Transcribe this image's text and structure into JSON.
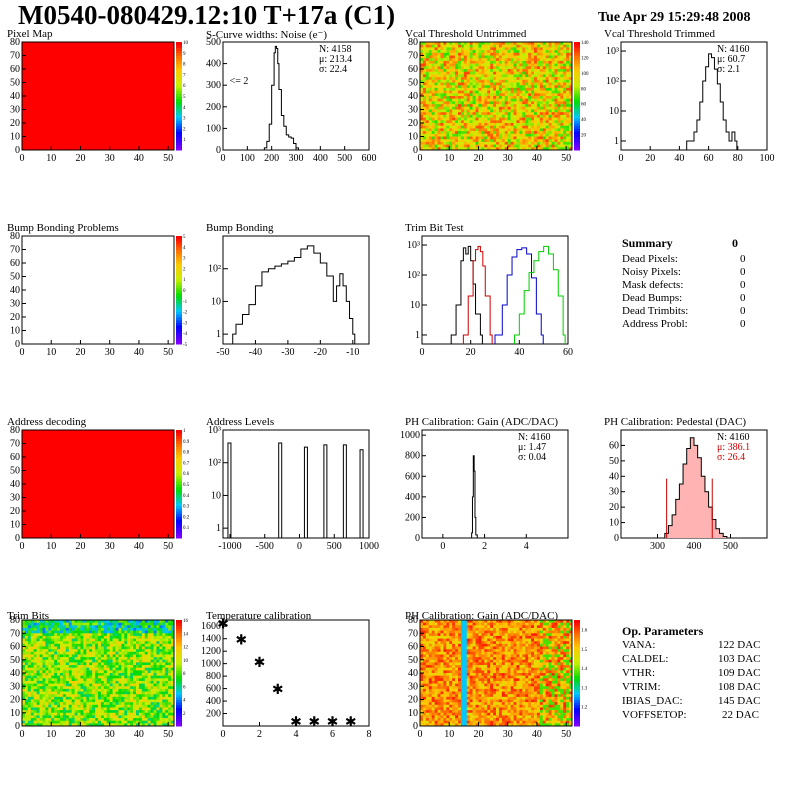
{
  "header": {
    "title": "M0540-080429.12:10 T+17a (C1)",
    "date": "Tue Apr 29 15:29:48 2008"
  },
  "colors": {
    "red": "#ff0000",
    "dark_red": "#cc0000",
    "blue": "#0000cc",
    "green": "#00cc00",
    "black": "#000000"
  },
  "chart_data": [
    {
      "id": "pixel-map",
      "type": "heatmap",
      "title": "Pixel Map",
      "xlim": [
        0,
        52
      ],
      "ylim": [
        0,
        80
      ],
      "xticks": [
        "0",
        "10",
        "20",
        "30",
        "40",
        "50"
      ],
      "yticks": [
        "0",
        "10",
        "20",
        "30",
        "40",
        "50",
        "60",
        "70",
        "80"
      ],
      "fill": "uniform red",
      "zticks": [
        "1",
        "2",
        "3",
        "4",
        "5",
        "6",
        "7",
        "8",
        "9",
        "10"
      ],
      "zlim": [
        0,
        10
      ]
    },
    {
      "id": "s-curve-widths",
      "type": "line",
      "title": "S-Curve widths: Noise (e⁻)",
      "xlim": [
        0,
        600
      ],
      "ylim": [
        0,
        500
      ],
      "xticks": [
        "0",
        "100",
        "200",
        "300",
        "400",
        "500",
        "600"
      ],
      "yticks": [
        "0",
        "100",
        "200",
        "300",
        "400",
        "500"
      ],
      "x": [
        160,
        170,
        180,
        190,
        200,
        210,
        215,
        220,
        225,
        230,
        240,
        250,
        260,
        270,
        280,
        290,
        300,
        310
      ],
      "y": [
        0,
        10,
        40,
        120,
        300,
        450,
        480,
        470,
        400,
        280,
        160,
        110,
        70,
        60,
        55,
        30,
        10,
        0
      ],
      "stats": {
        "n": "N: 4158",
        "mean": "μ: 213.4",
        "sigma": "σ: 22.4"
      },
      "annotation": "<= 2"
    },
    {
      "id": "vcal-untrimmed",
      "type": "heatmap",
      "title": "Vcal Threshold Untrimmed",
      "xlim": [
        0,
        52
      ],
      "ylim": [
        0,
        80
      ],
      "xticks": [
        "0",
        "10",
        "20",
        "30",
        "40",
        "50"
      ],
      "yticks": [
        "0",
        "10",
        "20",
        "30",
        "40",
        "50",
        "60",
        "70",
        "80"
      ],
      "fill": "orange yellow noise",
      "zticks": [
        "20",
        "40",
        "60",
        "80",
        "100",
        "120",
        "140"
      ],
      "zlim": [
        0,
        140
      ]
    },
    {
      "id": "vcal-trimmed",
      "type": "line",
      "title": "Vcal Threshold Trimmed",
      "log_y": true,
      "xlim": [
        0,
        100
      ],
      "ylim": [
        0.5,
        2000
      ],
      "xticks": [
        "0",
        "20",
        "40",
        "60",
        "80",
        "100"
      ],
      "yticks": [
        "1",
        "10",
        "10²",
        "10³"
      ],
      "x": [
        45,
        50,
        52,
        54,
        56,
        58,
        60,
        62,
        64,
        66,
        68,
        70,
        72,
        74,
        76,
        78
      ],
      "y": [
        1,
        2,
        5,
        20,
        100,
        300,
        800,
        600,
        250,
        80,
        20,
        5,
        2,
        1,
        2,
        1
      ],
      "stats": {
        "n": "N: 4160",
        "mean": "μ: 60.7",
        "sigma": "σ:  2.1"
      }
    },
    {
      "id": "bump-bonding-problems",
      "type": "heatmap",
      "title": "Bump Bonding Problems",
      "xlim": [
        0,
        52
      ],
      "ylim": [
        0,
        80
      ],
      "xticks": [
        "0",
        "10",
        "20",
        "30",
        "40",
        "50"
      ],
      "yticks": [
        "0",
        "10",
        "20",
        "30",
        "40",
        "50",
        "60",
        "70",
        "80"
      ],
      "fill": "empty",
      "zticks": [
        "-5",
        "-4",
        "-3",
        "-2",
        "-1",
        "0",
        "1",
        "2",
        "3",
        "4",
        "5"
      ],
      "zlim": [
        -5,
        5
      ]
    },
    {
      "id": "bump-bonding",
      "type": "line",
      "title": "Bump Bonding",
      "log_y": true,
      "xlim": [
        -50,
        -5
      ],
      "ylim": [
        0.5,
        1000
      ],
      "xticks": [
        "-50",
        "-40",
        "-30",
        "-20",
        "-10"
      ],
      "yticks": [
        "1",
        "10",
        "10²"
      ],
      "x": [
        -47,
        -46,
        -45,
        -44,
        -42,
        -40,
        -38,
        -36,
        -34,
        -32,
        -30,
        -28,
        -26,
        -24,
        -22,
        -20,
        -18,
        -16,
        -15,
        -14,
        -13,
        -12,
        -11,
        -10
      ],
      "y": [
        1,
        2,
        2,
        4,
        8,
        30,
        80,
        100,
        120,
        140,
        170,
        220,
        400,
        500,
        300,
        150,
        60,
        10,
        30,
        70,
        30,
        10,
        3,
        1
      ]
    },
    {
      "id": "trim-bit-test",
      "type": "line",
      "title": "Trim Bit Test",
      "log_y": true,
      "xlim": [
        0,
        60
      ],
      "ylim": [
        0.5,
        2000
      ],
      "xticks": [
        "0",
        "20",
        "40",
        "60"
      ],
      "yticks": [
        "1",
        "10",
        "10²",
        "10³"
      ],
      "series": [
        {
          "color": "#000000",
          "x": [
            12,
            14,
            16,
            17,
            18,
            19,
            20,
            21,
            22,
            24
          ],
          "y": [
            1,
            10,
            300,
            800,
            500,
            900,
            300,
            50,
            5,
            1
          ]
        },
        {
          "color": "#cc0000",
          "x": [
            17,
            19,
            21,
            22,
            23,
            24,
            25,
            26,
            28
          ],
          "y": [
            1,
            20,
            300,
            700,
            900,
            600,
            200,
            20,
            1
          ]
        },
        {
          "color": "#0000cc",
          "x": [
            30,
            33,
            35,
            37,
            39,
            41,
            43,
            45,
            47,
            49
          ],
          "y": [
            1,
            10,
            100,
            400,
            700,
            800,
            500,
            80,
            5,
            1
          ]
        },
        {
          "color": "#00cc00",
          "x": [
            38,
            40,
            42,
            44,
            46,
            48,
            50,
            52,
            54,
            56,
            58
          ],
          "y": [
            1,
            5,
            30,
            120,
            300,
            600,
            900,
            500,
            150,
            20,
            1
          ]
        }
      ]
    },
    {
      "id": "address-decoding",
      "type": "heatmap",
      "title": "Address decoding",
      "xlim": [
        0,
        52
      ],
      "ylim": [
        0,
        80
      ],
      "xticks": [
        "0",
        "10",
        "20",
        "30",
        "40",
        "50"
      ],
      "yticks": [
        "0",
        "10",
        "20",
        "30",
        "40",
        "50",
        "60",
        "70",
        "80"
      ],
      "fill": "uniform red",
      "zticks": [
        "0.1",
        "0.2",
        "0.3",
        "0.4",
        "0.5",
        "0.6",
        "0.7",
        "0.8",
        "0.9",
        "1"
      ],
      "zlim": [
        0,
        1
      ]
    },
    {
      "id": "address-levels",
      "type": "line",
      "title": "Address Levels",
      "log_y": true,
      "xlim": [
        -1100,
        1000
      ],
      "ylim": [
        0.5,
        1000
      ],
      "xticks": [
        "-1000",
        "-500",
        "0",
        "500",
        "1000"
      ],
      "yticks": [
        "1",
        "10",
        "10²",
        "10³"
      ],
      "peaks": [
        -1000,
        -270,
        100,
        380,
        660,
        900
      ],
      "peak_values": [
        400,
        400,
        300,
        350,
        350,
        250
      ]
    },
    {
      "id": "ph-gain-1d",
      "type": "line",
      "title": "PH Calibration: Gain (ADC/DAC)",
      "xlim": [
        -1,
        6
      ],
      "ylim": [
        0,
        1050
      ],
      "xticks": [
        "0",
        "2",
        "4"
      ],
      "yticks": [
        "0",
        "200",
        "400",
        "600",
        "800",
        "1000"
      ],
      "x": [
        1.3,
        1.38,
        1.42,
        1.46,
        1.5,
        1.54,
        1.58,
        1.65
      ],
      "y": [
        0,
        50,
        400,
        800,
        650,
        200,
        30,
        0
      ],
      "stats": {
        "n": "N: 4160",
        "mean": "μ: 1.47",
        "sigma": "σ: 0.04"
      }
    },
    {
      "id": "ph-pedestal",
      "type": "bar",
      "title": "PH Calibration: Pedestal (DAC)",
      "xlim": [
        200,
        600
      ],
      "ylim": [
        0,
        70
      ],
      "xticks": [
        "300",
        "400",
        "500"
      ],
      "yticks": [
        "0",
        "10",
        "20",
        "30",
        "40",
        "50",
        "60"
      ],
      "x": [
        300,
        320,
        330,
        340,
        350,
        360,
        370,
        380,
        390,
        400,
        410,
        420,
        430,
        440,
        450,
        460,
        470,
        480,
        490
      ],
      "y": [
        0,
        3,
        8,
        15,
        25,
        35,
        48,
        58,
        65,
        60,
        52,
        40,
        30,
        20,
        12,
        6,
        3,
        1,
        0
      ],
      "markers": [
        325,
        450
      ],
      "stats": {
        "n": "N: 4160",
        "mean": "μ: 386.1",
        "sigma": "σ: 26.4"
      }
    },
    {
      "id": "trim-bits",
      "type": "heatmap",
      "title": "Trim Bits",
      "xlim": [
        0,
        52
      ],
      "ylim": [
        0,
        80
      ],
      "xticks": [
        "0",
        "10",
        "20",
        "30",
        "40",
        "50"
      ],
      "yticks": [
        "0",
        "10",
        "20",
        "30",
        "40",
        "50",
        "60",
        "70",
        "80"
      ],
      "fill": "green yellow noise",
      "zticks": [
        "2",
        "4",
        "6",
        "8",
        "10",
        "12",
        "14",
        "16"
      ],
      "zlim": [
        0,
        16
      ]
    },
    {
      "id": "temperature-calibration",
      "type": "scatter",
      "title": "Temperature calibration",
      "xlim": [
        0,
        8
      ],
      "ylim": [
        0,
        1700
      ],
      "xticks": [
        "0",
        "2",
        "4",
        "6",
        "8"
      ],
      "yticks": [
        "200",
        "400",
        "600",
        "800",
        "1000",
        "1200",
        "1400",
        "1600"
      ],
      "x": [
        0,
        1,
        2,
        3,
        4,
        5,
        6,
        7
      ],
      "y": [
        1640,
        1390,
        1030,
        590,
        70,
        70,
        70,
        70
      ]
    },
    {
      "id": "ph-gain-map",
      "type": "heatmap",
      "title": "PH Calibration: Gain (ADC/DAC)",
      "xlim": [
        0,
        52
      ],
      "ylim": [
        0,
        80
      ],
      "xticks": [
        "0",
        "10",
        "20",
        "30",
        "40",
        "50"
      ],
      "yticks": [
        "0",
        "10",
        "20",
        "30",
        "40",
        "50",
        "60",
        "70",
        "80"
      ],
      "fill": "orange noise with cyan columns",
      "zticks": [
        "1.2",
        "1.3",
        "1.4",
        "1.5",
        "1.6"
      ],
      "zlim": [
        1.1,
        1.65
      ]
    }
  ],
  "summary": {
    "title": "Summary",
    "total": "0",
    "rows": [
      {
        "label": "Dead Pixels:",
        "value": "0"
      },
      {
        "label": "Noisy Pixels:",
        "value": "0"
      },
      {
        "label": "Mask defects:",
        "value": "0"
      },
      {
        "label": "Dead Bumps:",
        "value": "0"
      },
      {
        "label": "Dead Trimbits:",
        "value": "0"
      },
      {
        "label": "Address Probl:",
        "value": "0"
      }
    ]
  },
  "op_params": {
    "title": "Op. Parameters",
    "rows": [
      {
        "label": "VANA:",
        "value": "122 DAC"
      },
      {
        "label": "CALDEL:",
        "value": "103 DAC"
      },
      {
        "label": "VTHR:",
        "value": "109 DAC"
      },
      {
        "label": "VTRIM:",
        "value": "108 DAC"
      },
      {
        "label": "IBIAS_DAC:",
        "value": "145 DAC"
      },
      {
        "label": "VOFFSETOP:",
        "value": "22 DAC"
      }
    ]
  }
}
